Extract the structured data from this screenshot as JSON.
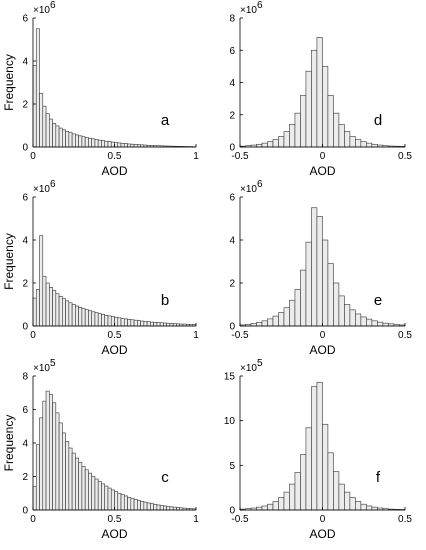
{
  "chart_data": [
    {
      "type": "bar",
      "panel_label": "a",
      "xlabel": "AOD",
      "ylabel": "Frequency",
      "scale_label": "×10",
      "scale_exp": "6",
      "xlim": [
        0,
        1
      ],
      "ylim": [
        0,
        6
      ],
      "xticks": [
        0,
        0.5,
        1
      ],
      "xtick_labels": [
        "0",
        "0.5",
        "1"
      ],
      "yticks": [
        0,
        2,
        4,
        6
      ],
      "ytick_labels": [
        "0",
        "2",
        "4",
        "6"
      ],
      "bin_start": 0,
      "bin_width": 0.02,
      "values": [
        3.8,
        5.5,
        2.5,
        1.9,
        1.55,
        1.3,
        1.1,
        0.98,
        0.88,
        0.8,
        0.73,
        0.67,
        0.61,
        0.56,
        0.52,
        0.48,
        0.44,
        0.41,
        0.38,
        0.35,
        0.32,
        0.3,
        0.27,
        0.25,
        0.23,
        0.21,
        0.19,
        0.17,
        0.16,
        0.14,
        0.13,
        0.12,
        0.11,
        0.1,
        0.09,
        0.08,
        0.07,
        0.065,
        0.06,
        0.055,
        0.05,
        0.045,
        0.04,
        0.035,
        0.03,
        0.03,
        0.025,
        0.02,
        0.02,
        0.015
      ]
    },
    {
      "type": "bar",
      "panel_label": "d",
      "xlabel": "AOD",
      "ylabel": "",
      "scale_label": "×10",
      "scale_exp": "6",
      "xlim": [
        -0.5,
        0.5
      ],
      "ylim": [
        0,
        8
      ],
      "xticks": [
        -0.5,
        0,
        0.5
      ],
      "xtick_labels": [
        "-0.5",
        "0",
        "0.5"
      ],
      "yticks": [
        0,
        2,
        4,
        6,
        8
      ],
      "ytick_labels": [
        "0",
        "2",
        "4",
        "6",
        "8"
      ],
      "bin_start": -0.5,
      "bin_width": 0.0333,
      "values": [
        0.05,
        0.08,
        0.12,
        0.17,
        0.24,
        0.33,
        0.46,
        0.65,
        0.95,
        1.4,
        2.1,
        3.2,
        4.7,
        6.0,
        6.8,
        5.0,
        3.2,
        2.1,
        1.4,
        0.95,
        0.65,
        0.46,
        0.33,
        0.24,
        0.17,
        0.12,
        0.08,
        0.06,
        0.05,
        0.04
      ]
    },
    {
      "type": "bar",
      "panel_label": "b",
      "xlabel": "AOD",
      "ylabel": "Frequency",
      "scale_label": "×10",
      "scale_exp": "6",
      "xlim": [
        0,
        1
      ],
      "ylim": [
        0,
        6
      ],
      "xticks": [
        0,
        0.5,
        1
      ],
      "xtick_labels": [
        "0",
        "0.5",
        "1"
      ],
      "yticks": [
        0,
        2,
        4,
        6
      ],
      "ytick_labels": [
        "0",
        "2",
        "4",
        "6"
      ],
      "bin_start": 0,
      "bin_width": 0.02,
      "values": [
        1.3,
        1.7,
        4.2,
        2.3,
        2.0,
        1.8,
        1.65,
        1.5,
        1.38,
        1.27,
        1.17,
        1.08,
        1.0,
        0.93,
        0.87,
        0.81,
        0.76,
        0.71,
        0.66,
        0.62,
        0.58,
        0.54,
        0.5,
        0.47,
        0.44,
        0.41,
        0.38,
        0.35,
        0.33,
        0.31,
        0.29,
        0.27,
        0.25,
        0.23,
        0.21,
        0.2,
        0.18,
        0.17,
        0.16,
        0.15,
        0.14,
        0.13,
        0.12,
        0.11,
        0.1,
        0.09,
        0.09,
        0.08,
        0.07,
        0.07
      ]
    },
    {
      "type": "bar",
      "panel_label": "e",
      "xlabel": "AOD",
      "ylabel": "",
      "scale_label": "×10",
      "scale_exp": "6",
      "xlim": [
        -0.5,
        0.5
      ],
      "ylim": [
        0,
        6
      ],
      "xticks": [
        -0.5,
        0,
        0.5
      ],
      "xtick_labels": [
        "-0.5",
        "0",
        "0.5"
      ],
      "yticks": [
        0,
        2,
        4,
        6
      ],
      "ytick_labels": [
        "0",
        "2",
        "4",
        "6"
      ],
      "bin_start": -0.5,
      "bin_width": 0.0333,
      "values": [
        0.05,
        0.08,
        0.12,
        0.17,
        0.24,
        0.33,
        0.46,
        0.62,
        0.85,
        1.2,
        1.7,
        2.6,
        3.9,
        5.5,
        5.1,
        4.0,
        2.9,
        2.0,
        1.4,
        1.0,
        0.75,
        0.56,
        0.42,
        0.32,
        0.24,
        0.18,
        0.13,
        0.1,
        0.07,
        0.05
      ]
    },
    {
      "type": "bar",
      "panel_label": "c",
      "xlabel": "AOD",
      "ylabel": "Frequency",
      "scale_label": "×10",
      "scale_exp": "5",
      "xlim": [
        0,
        1
      ],
      "ylim": [
        0,
        8
      ],
      "xticks": [
        0,
        0.5,
        1
      ],
      "xtick_labels": [
        "0",
        "0.5",
        "1"
      ],
      "yticks": [
        0,
        2,
        4,
        6,
        8
      ],
      "ytick_labels": [
        "0",
        "2",
        "4",
        "6",
        "8"
      ],
      "bin_start": 0,
      "bin_width": 0.02,
      "values": [
        1.4,
        3.9,
        5.5,
        6.5,
        7.1,
        6.9,
        6.4,
        5.8,
        5.2,
        4.6,
        4.1,
        3.7,
        3.4,
        3.1,
        2.85,
        2.6,
        2.4,
        2.2,
        2.0,
        1.85,
        1.7,
        1.56,
        1.43,
        1.31,
        1.2,
        1.1,
        1.0,
        0.92,
        0.84,
        0.76,
        0.7,
        0.63,
        0.57,
        0.52,
        0.47,
        0.42,
        0.38,
        0.34,
        0.3,
        0.27,
        0.24,
        0.21,
        0.19,
        0.17,
        0.15,
        0.13,
        0.11,
        0.1,
        0.08,
        0.07
      ]
    },
    {
      "type": "bar",
      "panel_label": "f",
      "xlabel": "AOD",
      "ylabel": "",
      "scale_label": "×10",
      "scale_exp": "5",
      "xlim": [
        -0.5,
        0.5
      ],
      "ylim": [
        0,
        15
      ],
      "xticks": [
        -0.5,
        0,
        0.5
      ],
      "xtick_labels": [
        "-0.5",
        "0",
        "0.5"
      ],
      "yticks": [
        0,
        5,
        10,
        15
      ],
      "ytick_labels": [
        "0",
        "5",
        "10",
        "15"
      ],
      "bin_start": -0.5,
      "bin_width": 0.0333,
      "values": [
        0.1,
        0.15,
        0.22,
        0.32,
        0.45,
        0.65,
        0.95,
        1.4,
        2.0,
        2.9,
        4.2,
        6.2,
        9.2,
        13.8,
        14.3,
        9.6,
        6.4,
        4.3,
        2.9,
        2.0,
        1.4,
        0.95,
        0.65,
        0.45,
        0.32,
        0.22,
        0.15,
        0.1,
        0.08,
        0.06
      ]
    }
  ]
}
